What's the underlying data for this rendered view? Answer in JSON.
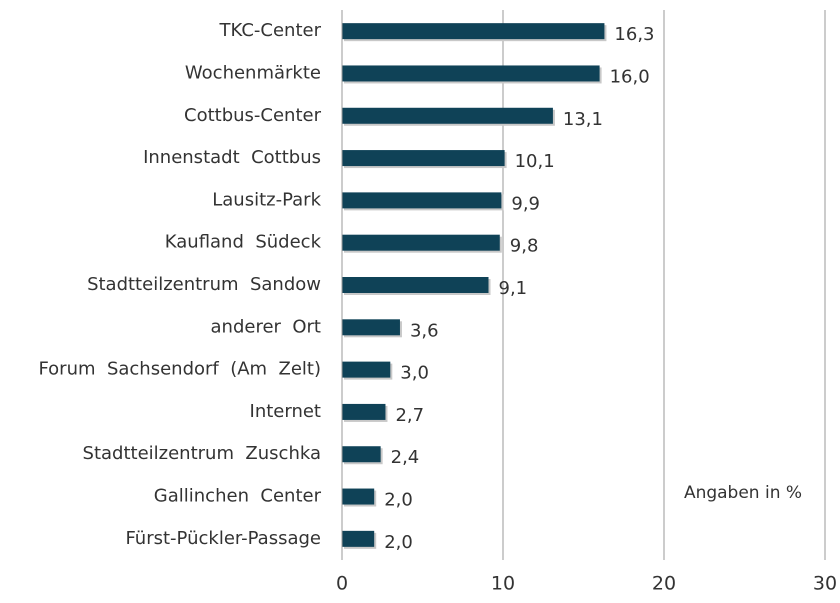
{
  "chart_data": {
    "type": "bar",
    "orientation": "horizontal",
    "categories": [
      "TKC-Center",
      "Wochenmärkte",
      "Cottbus-Center",
      "Innenstadt  Cottbus",
      "Lausitz-Park",
      "Kaufland  Südeck",
      "Stadtteilzentrum  Sandow",
      "anderer  Ort",
      "Forum  Sachsendorf  (Am  Zelt)",
      "Internet",
      "Stadtteilzentrum  Zuschka",
      "Gallinchen  Center",
      "Fürst-Pückler-Passage"
    ],
    "values": [
      16.3,
      16.0,
      13.1,
      10.1,
      9.9,
      9.8,
      9.1,
      3.6,
      3.0,
      2.7,
      2.4,
      2.0,
      2.0
    ],
    "value_labels": [
      "16,3",
      "16,0",
      "13,1",
      "10,1",
      "9,9",
      "9,8",
      "9,1",
      "3,6",
      "3,0",
      "2,7",
      "2,4",
      "2,0",
      "2,0"
    ],
    "color": "#0f4257",
    "xlim": [
      0,
      30
    ],
    "xticks": [
      0,
      10,
      20,
      30
    ],
    "grid": true,
    "annotation": "Angaben in %"
  }
}
